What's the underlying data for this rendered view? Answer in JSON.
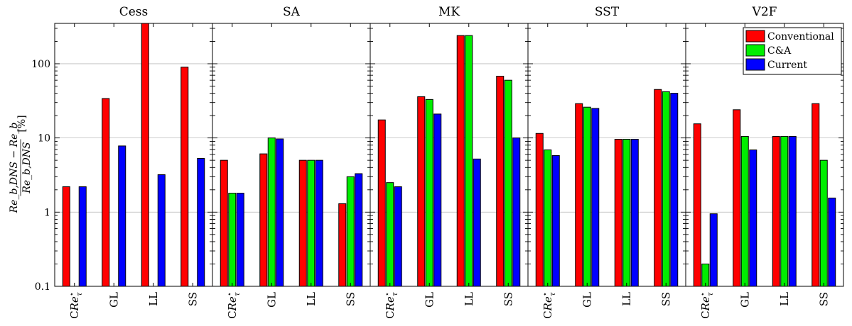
{
  "chart_data": {
    "type": "bar",
    "yscale": "log",
    "ylim": [
      0.1,
      350
    ],
    "yticks": [
      0.1,
      1,
      10,
      100
    ],
    "ytick_labels": [
      "0.1",
      "1",
      "10",
      "100"
    ],
    "ylabel": "Re_b,DNS − Re_b / Re_b,DNS  [%]",
    "grid": "horizontal at major ticks",
    "legend_position": "top-right",
    "series": [
      {
        "name": "Conventional",
        "color": "#ff0000"
      },
      {
        "name": "C&A",
        "color": "#00ee00"
      },
      {
        "name": "Current",
        "color": "#0000ff"
      }
    ],
    "categories": [
      "CRe*τ",
      "GL",
      "LL",
      "SS"
    ],
    "panels": [
      {
        "title": "Cess",
        "values": [
          [
            2.2,
            null,
            2.2
          ],
          [
            34,
            null,
            7.8
          ],
          [
            350,
            null,
            3.2
          ],
          [
            90,
            null,
            5.3
          ]
        ]
      },
      {
        "title": "SA",
        "values": [
          [
            5.0,
            1.8,
            1.8
          ],
          [
            6.1,
            10,
            9.7
          ],
          [
            5.0,
            5.0,
            5.0
          ],
          [
            1.3,
            3.0,
            3.3
          ]
        ]
      },
      {
        "title": "MK",
        "values": [
          [
            17.5,
            2.5,
            2.2
          ],
          [
            36,
            33,
            21
          ],
          [
            240,
            240,
            5.2
          ],
          [
            68,
            60,
            10
          ]
        ]
      },
      {
        "title": "SST",
        "values": [
          [
            11.5,
            6.9,
            5.8
          ],
          [
            29,
            26,
            25
          ],
          [
            9.6,
            9.6,
            9.6
          ],
          [
            45,
            42,
            40
          ]
        ]
      },
      {
        "title": "V2F",
        "values": [
          [
            15.5,
            0.2,
            0.95
          ],
          [
            24,
            10.5,
            6.9
          ],
          [
            10.5,
            10.5,
            10.5
          ],
          [
            29,
            5.0,
            1.55
          ]
        ]
      }
    ]
  }
}
